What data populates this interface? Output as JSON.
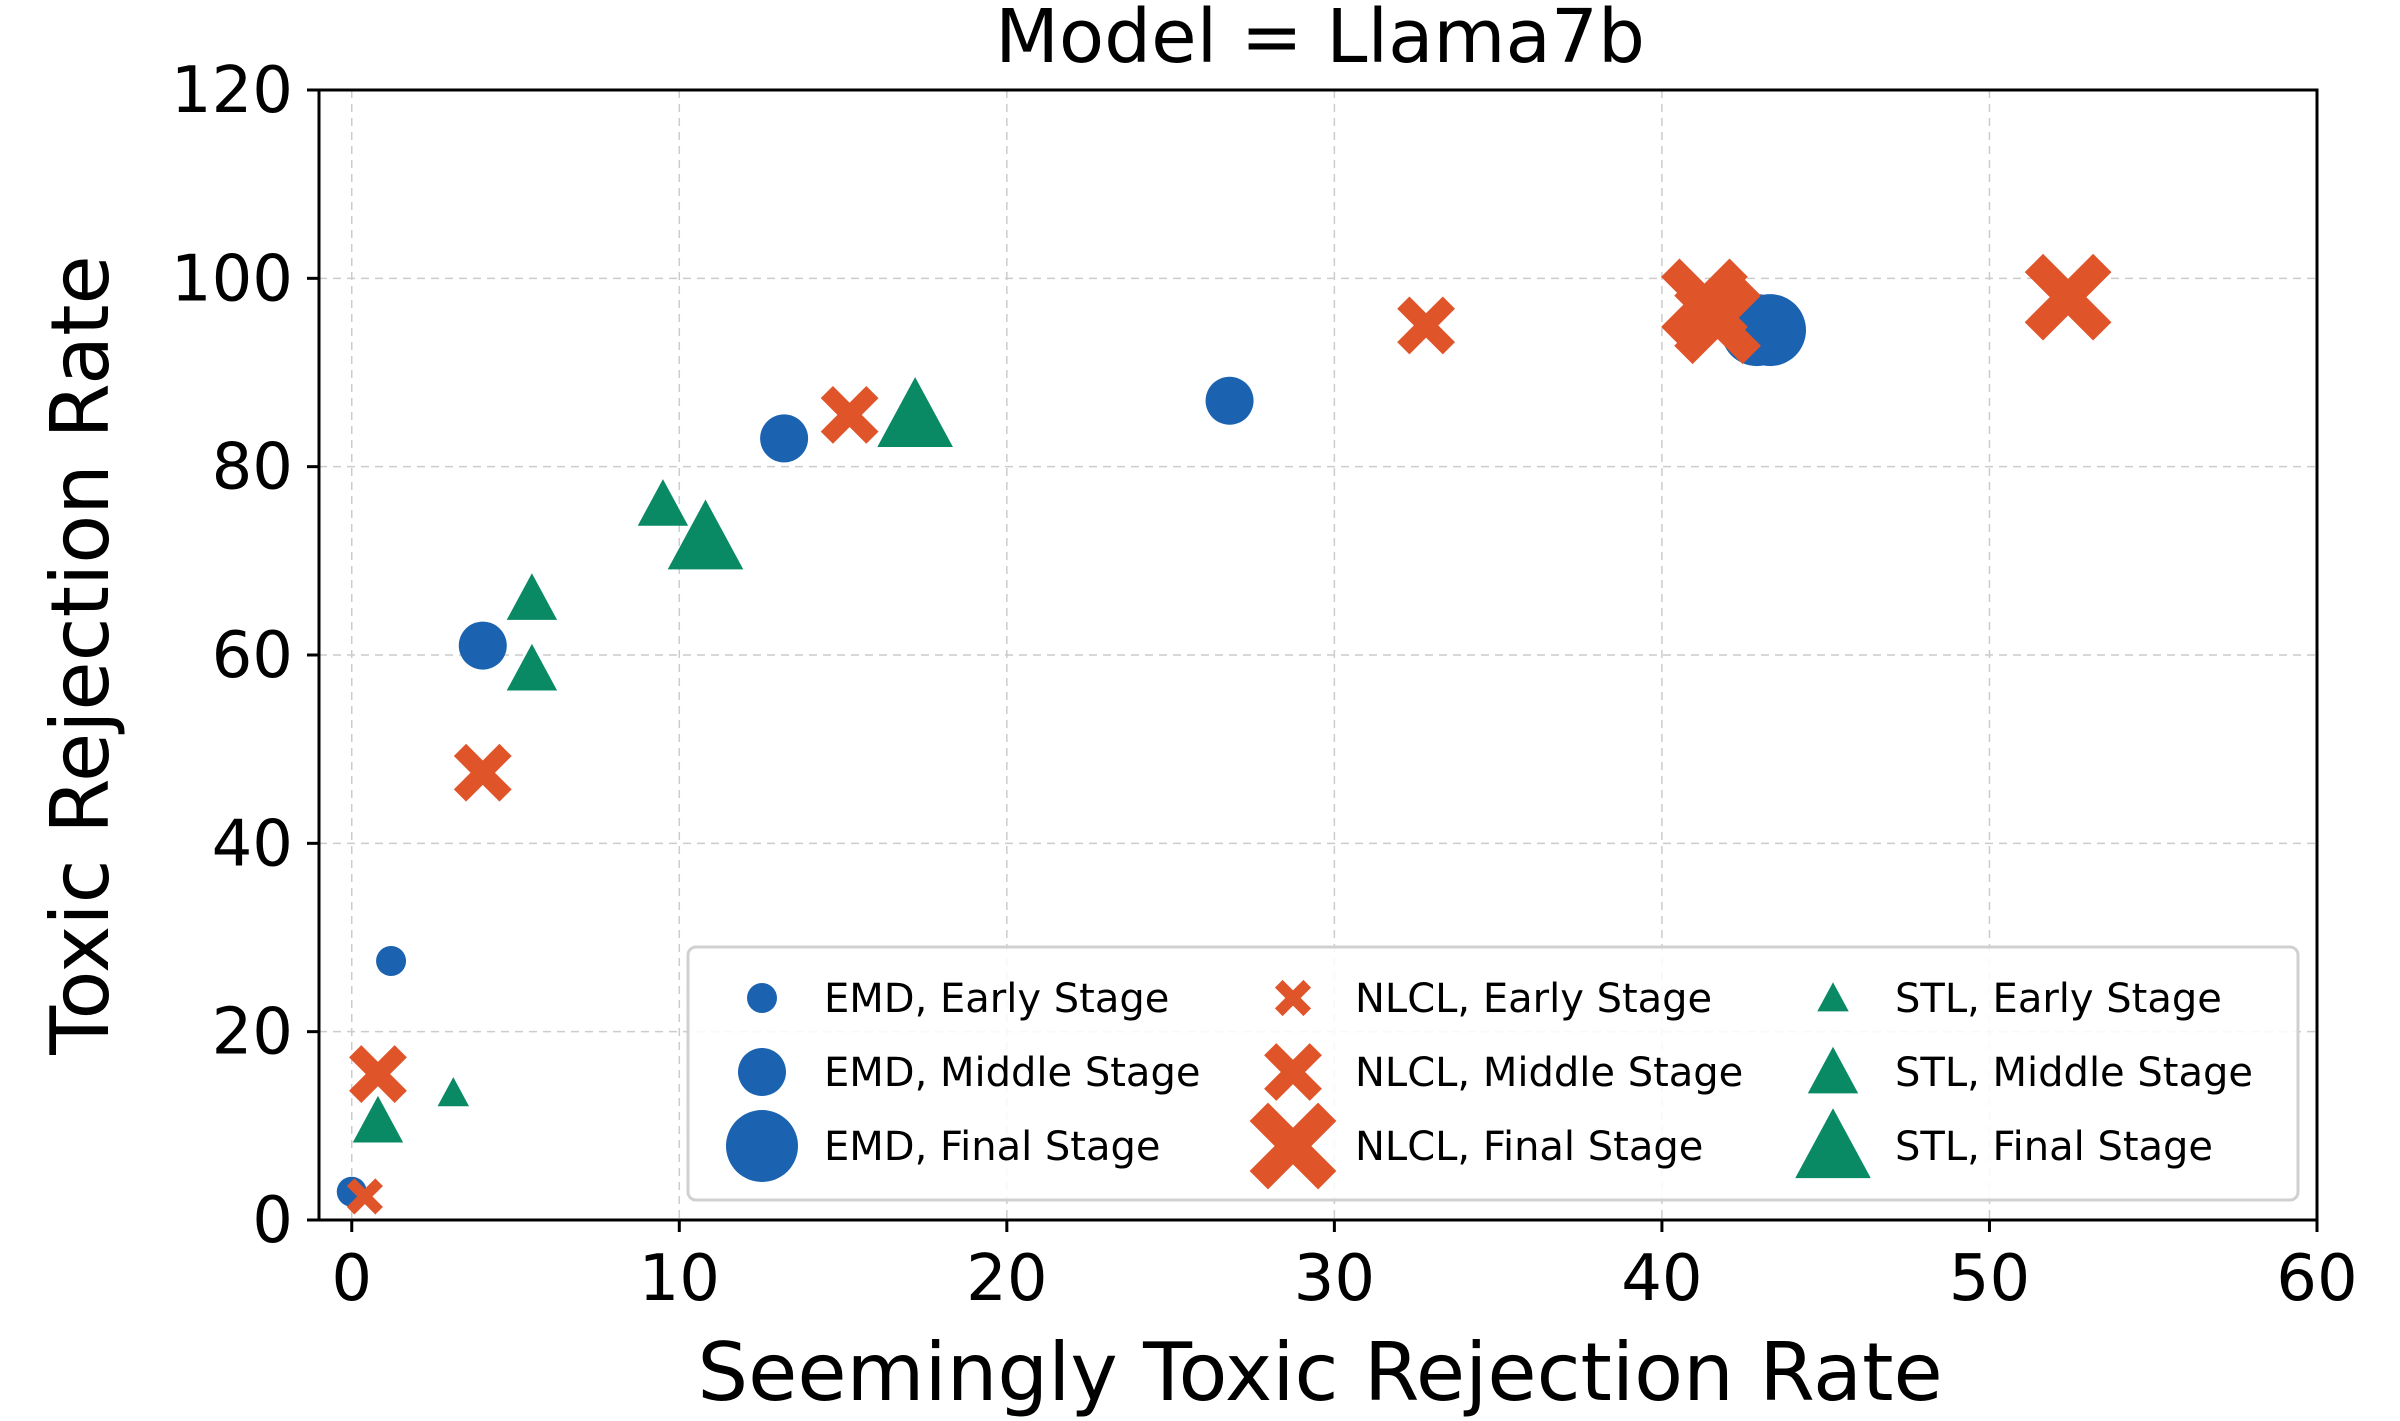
{
  "chart_data": {
    "type": "scatter",
    "title": "Model = Llama7b",
    "xlabel": "Seemingly Toxic Rejection Rate",
    "ylabel": "Toxic Rejection Rate",
    "xlim": [
      -1,
      60
    ],
    "ylim": [
      0,
      120
    ],
    "xticks": [
      0,
      10,
      20,
      30,
      40,
      50,
      60
    ],
    "yticks": [
      0,
      20,
      40,
      60,
      80,
      100,
      120
    ],
    "grid": true,
    "legend_position": "lower-right",
    "colors": {
      "EMD": "#1b63b0",
      "NLCL": "#e0542a",
      "STL": "#0a8a64"
    },
    "series": [
      {
        "method": "EMD",
        "stage": "Early Stage",
        "marker": "circle",
        "size": "small",
        "points": [
          [
            0.0,
            3
          ],
          [
            1.2,
            27.5
          ]
        ]
      },
      {
        "method": "EMD",
        "stage": "Middle Stage",
        "marker": "circle",
        "size": "medium",
        "points": [
          [
            4.0,
            61
          ],
          [
            13.2,
            83
          ],
          [
            26.8,
            87
          ]
        ]
      },
      {
        "method": "EMD",
        "stage": "Final Stage",
        "marker": "circle",
        "size": "large",
        "points": [
          [
            42.9,
            94.5
          ],
          [
            43.3,
            94.5
          ]
        ]
      },
      {
        "method": "NLCL",
        "stage": "Early Stage",
        "marker": "x",
        "size": "small",
        "points": [
          [
            0.4,
            2.5
          ]
        ]
      },
      {
        "method": "NLCL",
        "stage": "Middle Stage",
        "marker": "x",
        "size": "medium",
        "points": [
          [
            0.8,
            15.5
          ],
          [
            4.0,
            47.5
          ],
          [
            15.2,
            85.5
          ],
          [
            32.8,
            95
          ]
        ]
      },
      {
        "method": "NLCL",
        "stage": "Final Stage",
        "marker": "x",
        "size": "large",
        "points": [
          [
            41.3,
            97.5
          ],
          [
            41.7,
            95.5
          ],
          [
            52.4,
            98
          ]
        ]
      },
      {
        "method": "STL",
        "stage": "Early Stage",
        "marker": "triangle",
        "size": "small",
        "points": [
          [
            3.1,
            13.5
          ]
        ]
      },
      {
        "method": "STL",
        "stage": "Middle Stage",
        "marker": "triangle",
        "size": "medium",
        "points": [
          [
            0.8,
            10.5
          ],
          [
            5.5,
            66
          ],
          [
            5.5,
            58.5
          ],
          [
            9.5,
            76
          ]
        ]
      },
      {
        "method": "STL",
        "stage": "Final Stage",
        "marker": "triangle",
        "size": "large",
        "points": [
          [
            10.8,
            72.5
          ],
          [
            17.2,
            85.5
          ]
        ]
      }
    ],
    "legend": [
      "EMD, Early Stage",
      "EMD, Middle Stage",
      "EMD, Final Stage",
      "NLCL, Early Stage",
      "NLCL, Middle Stage",
      "NLCL, Final Stage",
      "STL, Early Stage",
      "STL, Middle Stage",
      "STL, Final Stage"
    ]
  }
}
